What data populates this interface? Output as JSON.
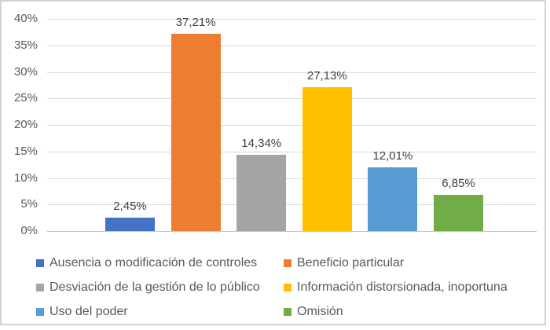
{
  "chart_data": {
    "type": "bar",
    "title": "",
    "xlabel": "",
    "ylabel": "",
    "categories": [
      "Ausencia o modificación de controles",
      "Beneficio particular",
      "Desviación de la gestión de lo público",
      "Información distorsionada, inoportuna",
      "Uso del poder",
      "Omisión"
    ],
    "values": [
      2.45,
      37.21,
      14.34,
      27.13,
      12.01,
      6.85
    ],
    "value_labels": [
      "2,45%",
      "37,21%",
      "14,34%",
      "27,13%",
      "12,01%",
      "6,85%"
    ],
    "bar_colors": [
      "#4472C4",
      "#ED7D31",
      "#A5A5A5",
      "#FFC000",
      "#5B9BD5",
      "#70AD47"
    ],
    "y_ticks": [
      "40%",
      "35%",
      "30%",
      "25%",
      "20%",
      "15%",
      "10%",
      "5%",
      "0%"
    ],
    "ylim": [
      0,
      40
    ],
    "grid": true,
    "legend_position": "bottom",
    "legend_columns": 2
  },
  "styles": {
    "gridline_color": "#d9d9d9",
    "axis_line_color": "#bfbfbf",
    "frame_border_color": "#d2d2d2",
    "tick_text_color": "#595959",
    "data_label_color": "#404040",
    "legend_text_color": "#595959",
    "background_color": "#ffffff"
  }
}
